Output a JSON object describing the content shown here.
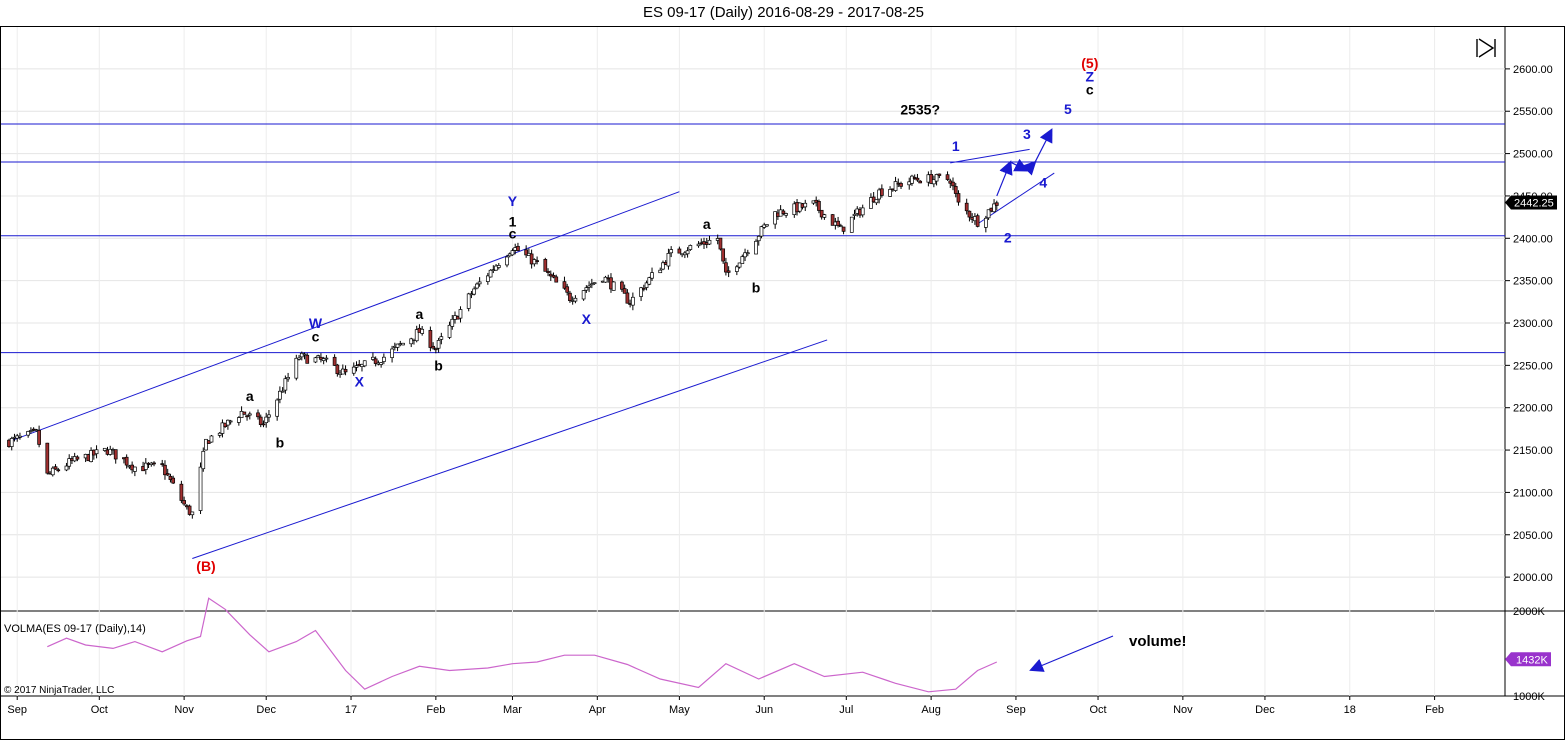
{
  "window": {
    "title": "ES 09-17 (Daily)  2016-08-29 - 2017-08-25"
  },
  "colors": {
    "up_candle": "#ffffff",
    "down_candle": "#a03030",
    "wick": "#000000",
    "channel": "#1a1ad0",
    "volma": "#cc66cc",
    "label_red": "#e00000",
    "label_blue": "#1a1ad0",
    "label_black": "#000000"
  },
  "icons": {
    "panel_toggle": "skip-to-end-icon"
  },
  "chart_data": [
    {
      "type": "candlestick",
      "title": "ES 09-17 (Daily)  2016-08-29 - 2017-08-25",
      "ylim": [
        1960,
        2640
      ],
      "yticks": [
        "2000.00",
        "2050.00",
        "2100.00",
        "2150.00",
        "2200.00",
        "2250.00",
        "2300.00",
        "2350.00",
        "2400.00",
        "2450.00",
        "2500.00",
        "2550.00",
        "2600.00"
      ],
      "current_price": "2442.25",
      "x_labels": [
        "Sep",
        "Oct",
        "Nov",
        "Dec",
        "17",
        "Feb",
        "Mar",
        "Apr",
        "May",
        "Jun",
        "Jul",
        "Aug",
        "Sep",
        "Oct",
        "Nov",
        "Dec",
        "18",
        "Feb"
      ],
      "price_path": [
        [
          "2016-08-29",
          2160
        ],
        [
          "2016-09-08",
          2170
        ],
        [
          "2016-09-12",
          2120
        ],
        [
          "2016-09-20",
          2135
        ],
        [
          "2016-10-04",
          2150
        ],
        [
          "2016-10-14",
          2130
        ],
        [
          "2016-10-24",
          2130
        ],
        [
          "2016-11-02",
          2080
        ],
        [
          "2016-11-04",
          2075
        ],
        [
          "2016-11-09",
          2160
        ],
        [
          "2016-11-22",
          2195
        ],
        [
          "2016-11-30",
          2180
        ],
        [
          "2016-12-13",
          2260
        ],
        [
          "2016-12-22",
          2255
        ],
        [
          "2016-12-30",
          2240
        ],
        [
          "2017-01-13",
          2260
        ],
        [
          "2017-01-26",
          2290
        ],
        [
          "2017-02-01",
          2270
        ],
        [
          "2017-02-15",
          2340
        ],
        [
          "2017-03-01",
          2390
        ],
        [
          "2017-03-10",
          2370
        ],
        [
          "2017-03-22",
          2330
        ],
        [
          "2017-04-03",
          2355
        ],
        [
          "2017-04-13",
          2325
        ],
        [
          "2017-04-28",
          2382
        ],
        [
          "2017-05-15",
          2400
        ],
        [
          "2017-05-18",
          2355
        ],
        [
          "2017-06-05",
          2430
        ],
        [
          "2017-06-19",
          2440
        ],
        [
          "2017-06-29",
          2410
        ],
        [
          "2017-07-13",
          2455
        ],
        [
          "2017-07-26",
          2470
        ],
        [
          "2017-08-08",
          2470
        ],
        [
          "2017-08-11",
          2440
        ],
        [
          "2017-08-18",
          2420
        ],
        [
          "2017-08-25",
          2442
        ]
      ],
      "horizontal_levels": [
        2535,
        2490,
        2403,
        2265
      ],
      "channel_lines": [
        {
          "from": [
            "2016-08-29",
            2160
          ],
          "to": [
            "2017-05-01",
            2455
          ]
        },
        {
          "from": [
            "2016-11-04",
            2022
          ],
          "to": [
            "2017-06-24",
            2280
          ]
        }
      ],
      "triangle_lines": [
        {
          "from": [
            "2017-08-08",
            2489
          ],
          "to": [
            "2017-09-06",
            2505
          ]
        },
        {
          "from": [
            "2017-08-18",
            2417
          ],
          "to": [
            "2017-09-15",
            2477
          ]
        }
      ],
      "forecast_path": [
        [
          "2017-08-25",
          2450
        ],
        [
          "2017-08-30",
          2490
        ],
        [
          "2017-09-05",
          2480
        ],
        [
          "2017-09-08",
          2490
        ],
        [
          "2017-09-14",
          2528
        ]
      ],
      "wave_labels": [
        {
          "text": "(B)",
          "date": "2016-11-09",
          "price": 2007,
          "color": "red"
        },
        {
          "text": "a",
          "date": "2016-11-25",
          "price": 2208,
          "color": "black"
        },
        {
          "text": "b",
          "date": "2016-12-06",
          "price": 2153,
          "color": "black"
        },
        {
          "text": "c",
          "date": "2016-12-19",
          "price": 2278,
          "color": "black"
        },
        {
          "text": "W",
          "date": "2016-12-19",
          "price": 2294,
          "color": "blue"
        },
        {
          "text": "X",
          "date": "2017-01-04",
          "price": 2225,
          "color": "blue"
        },
        {
          "text": "a",
          "date": "2017-01-26",
          "price": 2305,
          "color": "black"
        },
        {
          "text": "b",
          "date": "2017-02-02",
          "price": 2244,
          "color": "black"
        },
        {
          "text": "Y",
          "date": "2017-03-01",
          "price": 2438,
          "color": "blue"
        },
        {
          "text": "1",
          "date": "2017-03-01",
          "price": 2414,
          "color": "black"
        },
        {
          "text": "c",
          "date": "2017-03-01",
          "price": 2400,
          "color": "black"
        },
        {
          "text": "X",
          "date": "2017-03-28",
          "price": 2299,
          "color": "blue"
        },
        {
          "text": "a",
          "date": "2017-05-11",
          "price": 2411,
          "color": "black"
        },
        {
          "text": "b",
          "date": "2017-05-29",
          "price": 2336,
          "color": "black"
        },
        {
          "text": "2535?",
          "date": "2017-07-28",
          "price": 2546,
          "color": "black"
        },
        {
          "text": "1",
          "date": "2017-08-10",
          "price": 2503,
          "color": "blue"
        },
        {
          "text": "2",
          "date": "2017-08-29",
          "price": 2395,
          "color": "blue"
        },
        {
          "text": "3",
          "date": "2017-09-05",
          "price": 2517,
          "color": "blue"
        },
        {
          "text": "4",
          "date": "2017-09-11",
          "price": 2460,
          "color": "blue"
        },
        {
          "text": "5",
          "date": "2017-09-20",
          "price": 2547,
          "color": "blue"
        },
        {
          "text": "(5)",
          "date": "2017-09-28",
          "price": 2601,
          "color": "red"
        },
        {
          "text": "Z",
          "date": "2017-09-28",
          "price": 2585,
          "color": "blue"
        },
        {
          "text": "c",
          "date": "2017-09-28",
          "price": 2570,
          "color": "black"
        }
      ]
    },
    {
      "type": "line",
      "title": "VOLMA(ES 09-17 (Daily),14)",
      "ylim": [
        1000,
        2000
      ],
      "yticks": [
        "1000K",
        "2000K"
      ],
      "current_value": "1432K",
      "annotation": "volume!",
      "series": [
        {
          "name": "VOLMA",
          "values": [
            [
              "2016-09-12",
              1580
            ],
            [
              "2016-09-19",
              1680
            ],
            [
              "2016-09-26",
              1600
            ],
            [
              "2016-10-06",
              1560
            ],
            [
              "2016-10-14",
              1640
            ],
            [
              "2016-10-24",
              1520
            ],
            [
              "2016-11-02",
              1650
            ],
            [
              "2016-11-07",
              1700
            ],
            [
              "2016-11-10",
              2150
            ],
            [
              "2016-11-16",
              2020
            ],
            [
              "2016-11-25",
              1720
            ],
            [
              "2016-12-02",
              1520
            ],
            [
              "2016-12-12",
              1640
            ],
            [
              "2016-12-19",
              1770
            ],
            [
              "2016-12-30",
              1300
            ],
            [
              "2017-01-06",
              1080
            ],
            [
              "2017-01-16",
              1230
            ],
            [
              "2017-01-26",
              1350
            ],
            [
              "2017-02-06",
              1300
            ],
            [
              "2017-02-20",
              1330
            ],
            [
              "2017-03-01",
              1380
            ],
            [
              "2017-03-10",
              1400
            ],
            [
              "2017-03-20",
              1480
            ],
            [
              "2017-03-31",
              1480
            ],
            [
              "2017-04-12",
              1370
            ],
            [
              "2017-04-24",
              1200
            ],
            [
              "2017-05-08",
              1100
            ],
            [
              "2017-05-18",
              1380
            ],
            [
              "2017-05-30",
              1200
            ],
            [
              "2017-06-12",
              1380
            ],
            [
              "2017-06-23",
              1230
            ],
            [
              "2017-07-07",
              1280
            ],
            [
              "2017-07-19",
              1150
            ],
            [
              "2017-07-31",
              1050
            ],
            [
              "2017-08-10",
              1080
            ],
            [
              "2017-08-18",
              1300
            ],
            [
              "2017-08-25",
              1400
            ]
          ]
        }
      ]
    }
  ],
  "copyright": "© 2017 NinjaTrader, LLC"
}
